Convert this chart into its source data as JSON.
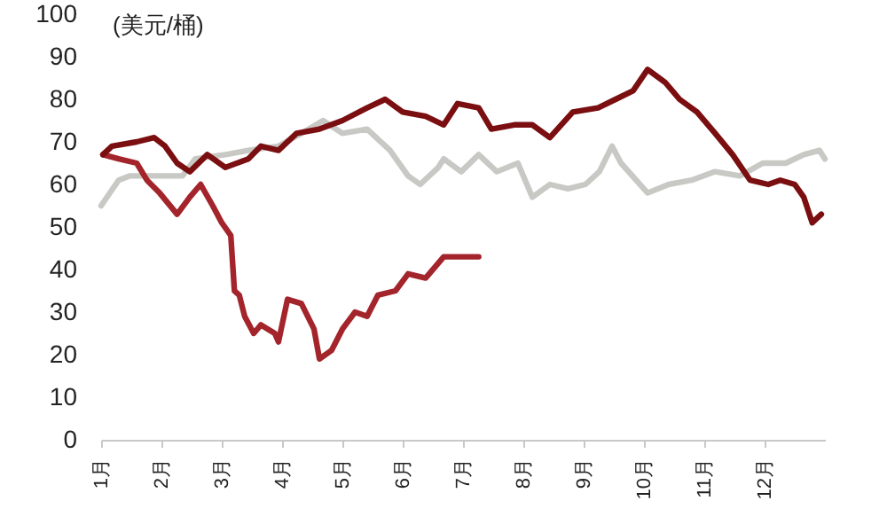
{
  "chart_data": {
    "type": "line",
    "ylabel": "(美元/桶)",
    "xlim": [
      1,
      13
    ],
    "xticks": [
      {
        "value": 1,
        "label": "1月"
      },
      {
        "value": 2,
        "label": "2月"
      },
      {
        "value": 3,
        "label": "3月"
      },
      {
        "value": 4,
        "label": "4月"
      },
      {
        "value": 5,
        "label": "5月"
      },
      {
        "value": 6,
        "label": "6月"
      },
      {
        "value": 7,
        "label": "7月"
      },
      {
        "value": 8,
        "label": "8月"
      },
      {
        "value": 9,
        "label": "9月"
      },
      {
        "value": 10,
        "label": "10月"
      },
      {
        "value": 11,
        "label": "11月"
      },
      {
        "value": 12,
        "label": "12月"
      }
    ],
    "ylim": [
      0,
      100
    ],
    "yticks": [
      0,
      10,
      20,
      30,
      40,
      50,
      60,
      70,
      80,
      90,
      100
    ],
    "grid": false,
    "series": [
      {
        "color": "#c8c8c4",
        "x": [
          1.0,
          1.29,
          1.47,
          1.76,
          2.06,
          2.35,
          2.56,
          3.06,
          3.44,
          3.94,
          4.32,
          4.68,
          5.0,
          5.41,
          5.79,
          6.09,
          6.29,
          6.59,
          6.68,
          6.97,
          7.26,
          7.56,
          7.91,
          8.15,
          8.44,
          8.74,
          9.03,
          9.26,
          9.47,
          9.62,
          10.06,
          10.41,
          10.79,
          11.18,
          11.59,
          11.97,
          12.35,
          12.65,
          12.91,
          13.0
        ],
        "values": [
          55,
          61,
          62,
          62,
          62,
          62,
          66,
          67,
          68,
          69,
          72,
          75,
          72,
          73,
          68,
          62,
          60,
          64,
          66,
          63,
          67,
          63,
          65,
          57,
          60,
          59,
          60,
          63,
          69,
          65,
          58,
          60,
          61,
          63,
          62,
          65,
          65,
          67,
          68,
          66
        ]
      },
      {
        "color": "#a3242b",
        "x": [
          1.03,
          1.29,
          1.59,
          1.76,
          1.97,
          2.26,
          2.47,
          2.65,
          2.85,
          3.0,
          3.15,
          3.21,
          3.29,
          3.38,
          3.53,
          3.65,
          3.88,
          3.94,
          4.09,
          4.32,
          4.53,
          4.62,
          4.82,
          5.0,
          5.21,
          5.41,
          5.59,
          5.88,
          6.09,
          6.38,
          6.68,
          7.26
        ],
        "values": [
          67,
          66,
          65,
          61,
          58,
          53,
          57,
          60,
          55,
          51,
          48,
          35,
          34,
          29,
          25,
          27,
          25,
          23,
          33,
          32,
          26,
          19,
          21,
          26,
          30,
          29,
          34,
          35,
          39,
          38,
          43,
          43
        ]
      },
      {
        "color": "#7a0e10",
        "x": [
          1.03,
          1.18,
          1.59,
          1.88,
          2.06,
          2.26,
          2.47,
          2.76,
          3.06,
          3.44,
          3.65,
          3.94,
          4.24,
          4.62,
          5.0,
          5.41,
          5.71,
          6.0,
          6.38,
          6.68,
          6.91,
          7.26,
          7.47,
          7.85,
          8.15,
          8.44,
          8.82,
          9.24,
          9.53,
          9.82,
          10.06,
          10.35,
          10.59,
          10.88,
          11.18,
          11.47,
          11.76,
          12.06,
          12.26,
          12.5,
          12.65,
          12.79,
          12.94
        ],
        "values": [
          67,
          69,
          70,
          71,
          69,
          65,
          63,
          67,
          64,
          66,
          69,
          68,
          72,
          73,
          75,
          78,
          80,
          77,
          76,
          74,
          79,
          78,
          73,
          74,
          74,
          71,
          77,
          78,
          80,
          82,
          87,
          84,
          80,
          77,
          72,
          67,
          61,
          60,
          61,
          60,
          57,
          51,
          53
        ]
      }
    ]
  }
}
